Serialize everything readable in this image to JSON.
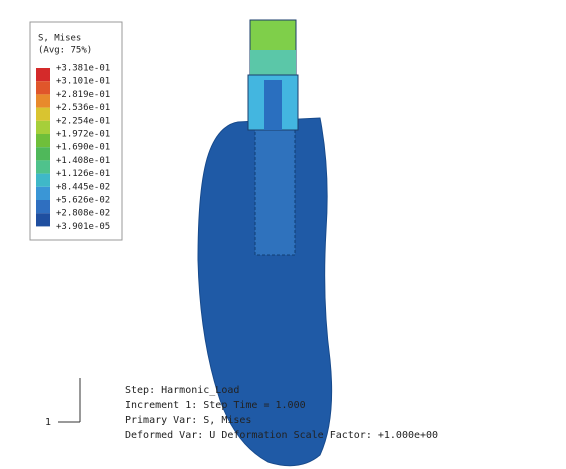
{
  "legend": {
    "title": "S, Mises",
    "subtitle": "(Avg: 75%)",
    "labels": [
      "+3.381e-01",
      "+3.101e-01",
      "+2.819e-01",
      "+2.536e-01",
      "+2.254e-01",
      "+1.972e-01",
      "+1.690e-01",
      "+1.408e-01",
      "+1.126e-01",
      "+8.445e-02",
      "+5.626e-02",
      "+2.808e-02",
      "+3.901e-05"
    ]
  },
  "triad": {
    "axis": "1"
  },
  "info": {
    "lines": [
      "Step: Harmonic_Load",
      "Increment    1: Step Time =     1.000",
      "Primary Var: S, Mises",
      "Deformed Var: U   Deformation Scale Factor: +1.000e+00"
    ]
  }
}
